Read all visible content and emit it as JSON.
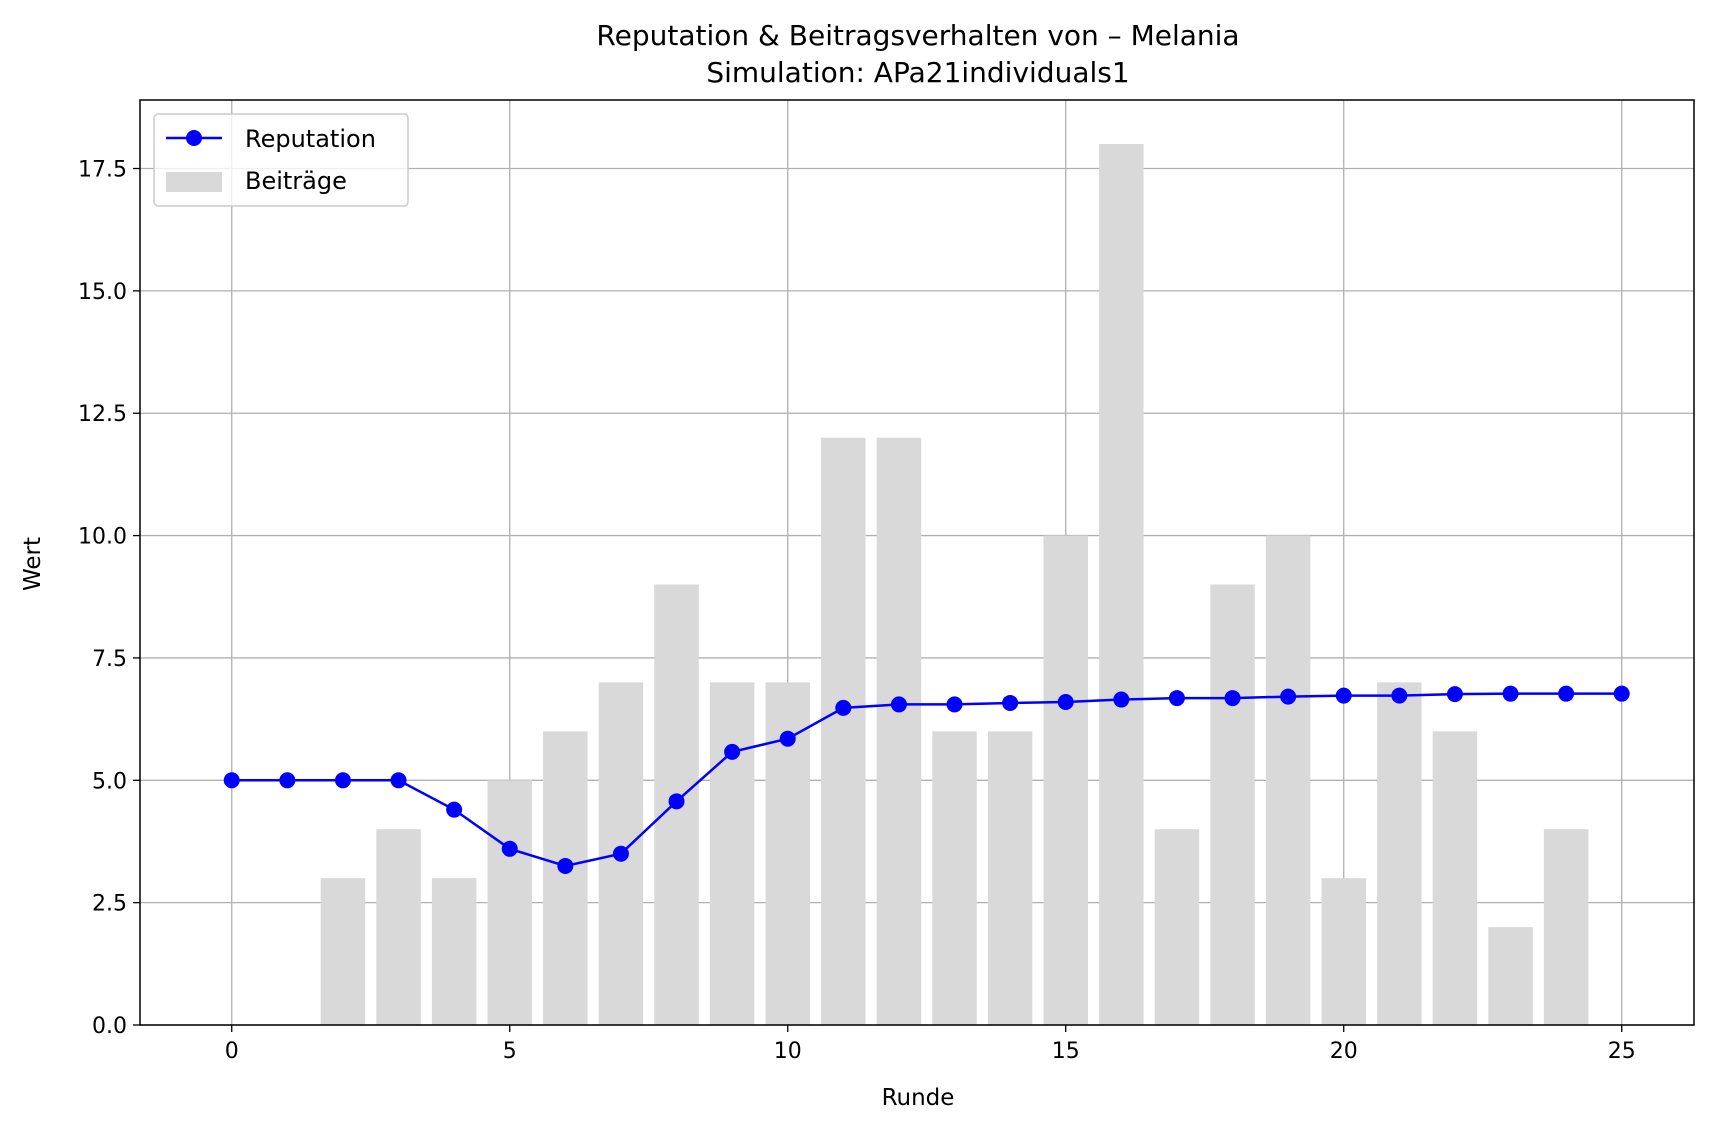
{
  "chart_data": {
    "type": "bar",
    "title": "Reputation & Beitragsverhalten von – Melania",
    "subtitle": "Simulation: APa21individuals1",
    "xlabel": "Runde",
    "ylabel": "Wert",
    "xlim": [
      -1.65,
      26.3
    ],
    "ylim": [
      0,
      18.9
    ],
    "xticks": [
      0,
      5,
      10,
      15,
      20,
      25
    ],
    "yticks": [
      0.0,
      2.5,
      5.0,
      7.5,
      10.0,
      12.5,
      15.0,
      17.5
    ],
    "xtick_labels": [
      "0",
      "5",
      "10",
      "15",
      "20",
      "25"
    ],
    "ytick_labels": [
      "0.0",
      "2.5",
      "5.0",
      "7.5",
      "10.0",
      "12.5",
      "15.0",
      "17.5"
    ],
    "grid": true,
    "legend_position": "top-left",
    "x": [
      0,
      1,
      2,
      3,
      4,
      5,
      6,
      7,
      8,
      9,
      10,
      11,
      12,
      13,
      14,
      15,
      16,
      17,
      18,
      19,
      20,
      21,
      22,
      23,
      24,
      25
    ],
    "series": [
      {
        "name": "Reputation",
        "type": "line",
        "color": "#0000ff",
        "values": [
          5.0,
          5.0,
          5.0,
          5.0,
          4.4,
          3.6,
          3.25,
          3.5,
          4.57,
          5.58,
          5.85,
          6.48,
          6.55,
          6.55,
          6.58,
          6.6,
          6.65,
          6.68,
          6.68,
          6.71,
          6.73,
          6.73,
          6.76,
          6.77,
          6.77,
          6.77
        ]
      },
      {
        "name": "Beiträge",
        "type": "bar",
        "color": "#d9d9d9",
        "x": [
          2,
          3,
          4,
          5,
          6,
          7,
          8,
          9,
          10,
          11,
          12,
          13,
          14,
          15,
          16,
          17,
          18,
          19,
          20,
          21,
          22,
          23,
          24
        ],
        "values": [
          3,
          4,
          3,
          5,
          6,
          7,
          9,
          7,
          7,
          12,
          12,
          6,
          6,
          10,
          18,
          4,
          9,
          10,
          3,
          7,
          6,
          2,
          4
        ]
      }
    ]
  }
}
